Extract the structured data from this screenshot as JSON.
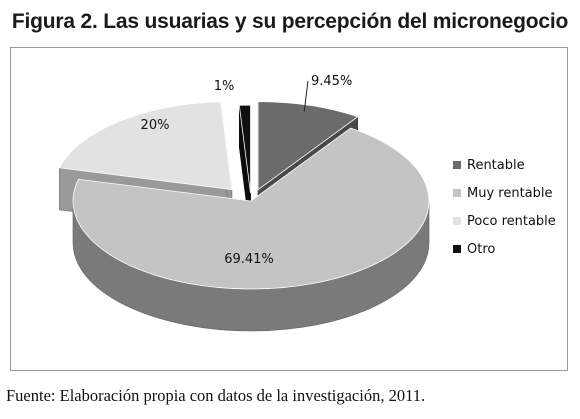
{
  "header": {
    "title": "Figura 2. Las usuarias y su percepción del micronegocio"
  },
  "chart_data": {
    "type": "pie",
    "style": "3d-exploded",
    "categories": [
      "Rentable",
      "Muy rentable",
      "Poco rentable",
      "Otro"
    ],
    "values": [
      9.45,
      69.41,
      20,
      1
    ],
    "labels": [
      "9.45%",
      "69.41%",
      "20%",
      "1%"
    ],
    "colors": [
      "#6b6b6b",
      "#c4c4c4",
      "#e2e2e2",
      "#111111"
    ],
    "legend_position": "right"
  },
  "legend": {
    "items": [
      {
        "label": "Rentable",
        "color": "#6b6b6b"
      },
      {
        "label": "Muy rentable",
        "color": "#c4c4c4"
      },
      {
        "label": "Poco rentable",
        "color": "#e2e2e2"
      },
      {
        "label": "Otro",
        "color": "#111111"
      }
    ]
  },
  "footer": {
    "source": "Fuente: Elaboración propia con datos de la investigación, 2011."
  }
}
